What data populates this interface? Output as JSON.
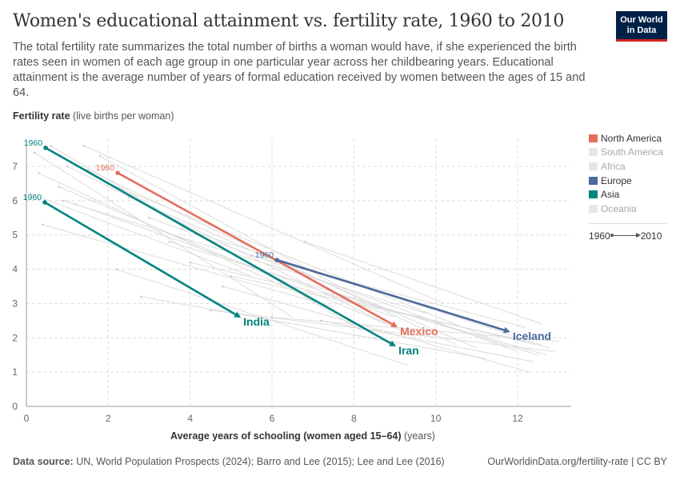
{
  "header": {
    "title": "Women's educational attainment vs. fertility rate, 1960 to 2010",
    "subtitle": "The total fertility rate summarizes the total number of births a woman would have, if she experienced the birth rates seen in women of each age group in one particular year across her childbearing years. Educational attainment is the average number of years of formal education received by women between the ages of 15 and 64.",
    "logo": "Our World in Data"
  },
  "footer": {
    "source_label": "Data source:",
    "source": "UN, World Population Prospects (2024); Barro and Lee (2015); Lee and Lee (2016)",
    "link": "OurWorldinData.org/fertility-rate | CC BY"
  },
  "legend": {
    "items": [
      {
        "label": "North America",
        "color": "#e56e5a",
        "active": true
      },
      {
        "label": "South America",
        "color": "#e6e6e6",
        "active": false
      },
      {
        "label": "Africa",
        "color": "#e6e6e6",
        "active": false
      },
      {
        "label": "Europe",
        "color": "#4c6a9c",
        "active": true
      },
      {
        "label": "Asia",
        "color": "#00847e",
        "active": true
      },
      {
        "label": "Oceania",
        "color": "#e6e6e6",
        "active": false
      }
    ],
    "time_start": "1960",
    "time_end": "2010"
  },
  "chart_data": {
    "type": "scatter",
    "title": "Women's educational attainment vs. fertility rate, 1960 to 2010",
    "ylabel_bold": "Fertility rate",
    "ylabel_unit": "(live births per woman)",
    "xlabel_bold": "Average years of schooling (women aged 15–64)",
    "xlabel_unit": "(years)",
    "xlim": [
      0,
      13.3
    ],
    "ylim": [
      0,
      7.8
    ],
    "xticks": [
      "0",
      "2",
      "4",
      "6",
      "8",
      "10",
      "12"
    ],
    "yticks": [
      "0",
      "1",
      "2",
      "3",
      "4",
      "5",
      "6",
      "7"
    ],
    "grid": true,
    "legend_position": "right",
    "start_label": "1960",
    "highlighted": [
      {
        "name": "Iran",
        "region": "Asia",
        "color": "#00847e",
        "start": [
          0.47,
          7.54
        ],
        "end": [
          9.03,
          1.75
        ]
      },
      {
        "name": "India",
        "region": "Asia",
        "color": "#00847e",
        "start": [
          0.45,
          5.95
        ],
        "end": [
          5.24,
          2.59
        ]
      },
      {
        "name": "Mexico",
        "region": "North America",
        "color": "#e56e5a",
        "start": [
          2.23,
          6.81
        ],
        "end": [
          9.07,
          2.31
        ]
      },
      {
        "name": "Iceland",
        "region": "Europe",
        "color": "#4c6a9c",
        "start": [
          6.12,
          4.27
        ],
        "end": [
          11.82,
          2.17
        ]
      }
    ],
    "background": [
      [
        [
          0.2,
          7.4
        ],
        [
          6.5,
          2.6
        ]
      ],
      [
        [
          0.6,
          7.6
        ],
        [
          8.2,
          2.2
        ]
      ],
      [
        [
          1.0,
          7.0
        ],
        [
          9.5,
          2.0
        ]
      ],
      [
        [
          0.3,
          6.8
        ],
        [
          7.0,
          3.1
        ]
      ],
      [
        [
          1.5,
          6.9
        ],
        [
          10.5,
          1.8
        ]
      ],
      [
        [
          0.8,
          6.4
        ],
        [
          8.8,
          2.4
        ]
      ],
      [
        [
          2.5,
          6.1
        ],
        [
          11.0,
          1.7
        ]
      ],
      [
        [
          0.1,
          6.2
        ],
        [
          5.5,
          3.8
        ]
      ],
      [
        [
          1.2,
          5.9
        ],
        [
          9.0,
          2.6
        ]
      ],
      [
        [
          3.0,
          5.5
        ],
        [
          12.0,
          1.6
        ]
      ],
      [
        [
          0.4,
          5.3
        ],
        [
          7.5,
          2.9
        ]
      ],
      [
        [
          2.0,
          6.5
        ],
        [
          11.5,
          1.9
        ]
      ],
      [
        [
          3.5,
          4.8
        ],
        [
          12.5,
          1.5
        ]
      ],
      [
        [
          4.0,
          4.2
        ],
        [
          12.8,
          1.7
        ]
      ],
      [
        [
          5.0,
          3.8
        ],
        [
          12.6,
          1.8
        ]
      ],
      [
        [
          2.8,
          3.2
        ],
        [
          11.2,
          1.4
        ]
      ],
      [
        [
          4.5,
          2.8
        ],
        [
          12.9,
          1.6
        ]
      ],
      [
        [
          6.0,
          2.6
        ],
        [
          13.0,
          1.9
        ]
      ],
      [
        [
          7.2,
          2.5
        ],
        [
          12.4,
          1.3
        ]
      ],
      [
        [
          1.8,
          7.3
        ],
        [
          7.8,
          3.4
        ]
      ],
      [
        [
          5.5,
          4.4
        ],
        [
          12.2,
          2.3
        ]
      ],
      [
        [
          3.8,
          5.2
        ],
        [
          11.8,
          2.1
        ]
      ],
      [
        [
          0.9,
          6.0
        ],
        [
          9.8,
          2.7
        ]
      ],
      [
        [
          7.5,
          3.3
        ],
        [
          12.7,
          1.5
        ]
      ],
      [
        [
          2.2,
          4.0
        ],
        [
          9.3,
          1.2
        ]
      ],
      [
        [
          4.8,
          3.5
        ],
        [
          12.3,
          1.0
        ]
      ],
      [
        [
          6.8,
          4.8
        ],
        [
          12.6,
          2.4
        ]
      ],
      [
        [
          1.4,
          7.6
        ],
        [
          10.2,
          3.0
        ]
      ]
    ]
  }
}
